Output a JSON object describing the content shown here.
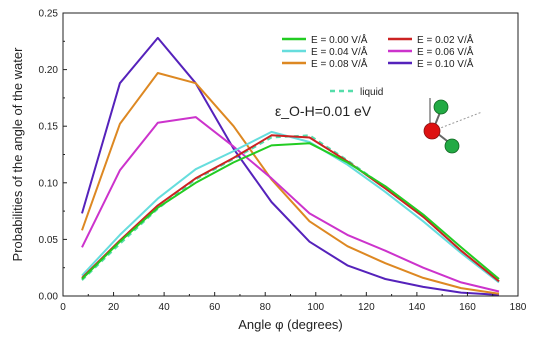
{
  "chart_data": {
    "type": "line",
    "title": "",
    "xlabel": "Angle φ (degrees)",
    "ylabel": "Probabilities of the angle of the water",
    "xlim": [
      0,
      180
    ],
    "ylim": [
      0,
      0.25
    ],
    "xticks": [
      0,
      20,
      40,
      60,
      80,
      100,
      120,
      140,
      160,
      180
    ],
    "xtick_labels": [
      "0",
      "20",
      "40",
      "60",
      "80",
      "100",
      "120",
      "140",
      "160",
      "180"
    ],
    "yticks": [
      0,
      0.05,
      0.1,
      0.15,
      0.2,
      0.25
    ],
    "ytick_labels": [
      "0.00",
      "0.05",
      "0.10",
      "0.15",
      "0.20",
      "0.25"
    ],
    "grid": false,
    "legend_position": "top-right",
    "annotation": "ε_O-H=0.01 eV",
    "x": [
      7.5,
      22.5,
      37.5,
      52.5,
      67.5,
      82.5,
      97.5,
      112.5,
      127.5,
      142.5,
      157.5,
      172.5
    ],
    "series": [
      {
        "name": "E = 0.00 V/Å",
        "color": "#22cc22",
        "dashed": false,
        "values": [
          0.015,
          0.048,
          0.078,
          0.1,
          0.118,
          0.133,
          0.135,
          0.118,
          0.097,
          0.072,
          0.043,
          0.015
        ]
      },
      {
        "name": "E = 0.02 V/Å",
        "color": "#cc2222",
        "dashed": false,
        "values": [
          0.016,
          0.049,
          0.08,
          0.104,
          0.122,
          0.142,
          0.14,
          0.119,
          0.095,
          0.07,
          0.04,
          0.013
        ]
      },
      {
        "name": "E = 0.04 V/Å",
        "color": "#66dddd",
        "dashed": false,
        "values": [
          0.018,
          0.054,
          0.086,
          0.112,
          0.128,
          0.145,
          0.136,
          0.116,
          0.092,
          0.066,
          0.038,
          0.012
        ]
      },
      {
        "name": "E = 0.06 V/Å",
        "color": "#cc33cc",
        "dashed": false,
        "values": [
          0.043,
          0.111,
          0.153,
          0.158,
          0.132,
          0.104,
          0.073,
          0.054,
          0.04,
          0.025,
          0.012,
          0.004
        ]
      },
      {
        "name": "E = 0.08 V/Å",
        "color": "#dd8822",
        "dashed": false,
        "values": [
          0.058,
          0.152,
          0.197,
          0.188,
          0.15,
          0.103,
          0.066,
          0.044,
          0.029,
          0.016,
          0.007,
          0.002
        ]
      },
      {
        "name": "E = 0.10 V/Å",
        "color": "#5522bb",
        "dashed": false,
        "values": [
          0.073,
          0.188,
          0.228,
          0.188,
          0.13,
          0.083,
          0.048,
          0.027,
          0.015,
          0.008,
          0.003,
          0.001
        ]
      },
      {
        "name": "liquid",
        "color": "#55ddaa",
        "dashed": true,
        "values": [
          0.014,
          0.046,
          0.077,
          0.103,
          0.121,
          0.14,
          0.142,
          0.12,
          0.096,
          0.07,
          0.04,
          0.013
        ]
      }
    ]
  }
}
